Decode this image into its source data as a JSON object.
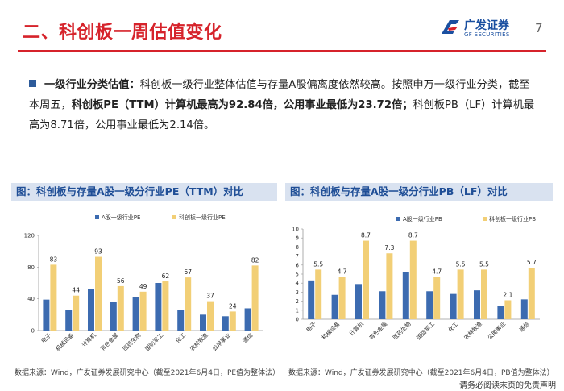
{
  "header": {
    "title": "二、科创板一周估值变化",
    "page_number": "7",
    "logo_cn": "广发证券",
    "logo_en": "GF SECURITIES"
  },
  "bullet": {
    "lead": "一级行业分类估值：",
    "text1": "科创板一级行业整体估值与存量A股偏离度依然较高。按照申万一级行业分类，截至本周五，",
    "bold1": "科创板PE（TTM）计算机最高为92.84倍，公用事业最低为23.72倍；",
    "text2": "科创板PB（LF）计算机最高为8.71倍，公用事业最低为2.14倍。"
  },
  "panels": {
    "left_title": "图：科创板与存量A股一级分行业PE（TTM）对比",
    "right_title": "图：科创板与存量A股一级分行业PB（LF）对比",
    "left_source": "数据来源：Wind，广发证券发展研究中心（截至2021年6月4日，PE值为整体法）",
    "right_source": "数据来源：Wind，广发证券发展研究中心（截至2021年6月4日，PB值为整体法）"
  },
  "footer": {
    "disclaimer": "请务必阅读末页的免责声明"
  },
  "colors": {
    "accent_red": "#d6232b",
    "brand_blue": "#1a4fa0",
    "series_a": "#3c6bb0",
    "series_kcb": "#f2cf76"
  },
  "chart_data": [
    {
      "type": "bar",
      "title": "图：科创板与存量A股一级分行业PE（TTM）对比",
      "categories": [
        "电子",
        "机械设备",
        "计算机",
        "有色金属",
        "医药生物",
        "国防军工",
        "化工",
        "农林牧渔",
        "公用事业",
        "通信"
      ],
      "series": [
        {
          "name": "A股一级行业PE",
          "values": [
            39,
            26,
            52,
            36,
            42,
            60,
            26,
            20,
            18,
            28
          ]
        },
        {
          "name": "科创板一级行业PE",
          "values": [
            83,
            44,
            93,
            56,
            49,
            62,
            67,
            37,
            24,
            82
          ],
          "labels": [
            "83",
            "44",
            "93",
            "56",
            "49",
            "62",
            "67",
            "37",
            "24",
            "82"
          ]
        }
      ],
      "ylim": [
        0,
        120
      ],
      "yticks": [
        "0",
        "40",
        "80",
        "120"
      ],
      "legend": "top",
      "xlabel": "",
      "ylabel": ""
    },
    {
      "type": "bar",
      "title": "图：科创板与存量A股一级分行业PB（LF）对比",
      "categories": [
        "电子",
        "机械设备",
        "计算机",
        "有色金属",
        "医药生物",
        "国防军工",
        "化工",
        "农林牧渔",
        "公用事业",
        "通信"
      ],
      "series": [
        {
          "name": "A股一级行业PB",
          "values": [
            4.3,
            2.7,
            3.9,
            3.1,
            5.2,
            3.1,
            2.8,
            3.2,
            1.5,
            2.2
          ]
        },
        {
          "name": "科创板一级行业PB",
          "values": [
            5.5,
            4.7,
            8.7,
            7.3,
            8.7,
            4.7,
            5.5,
            5.5,
            2.1,
            5.7
          ],
          "labels": [
            "5.5",
            "4.7",
            "8.7",
            "7.3",
            "8.7",
            "4.7",
            "5.5",
            "5.5",
            "2.1",
            "5.7"
          ]
        }
      ],
      "ylim": [
        0,
        10
      ],
      "yticks": [
        "0",
        "1",
        "2",
        "3",
        "4",
        "5",
        "6",
        "7",
        "8",
        "9",
        "10"
      ],
      "legend": "top",
      "xlabel": "",
      "ylabel": ""
    }
  ]
}
